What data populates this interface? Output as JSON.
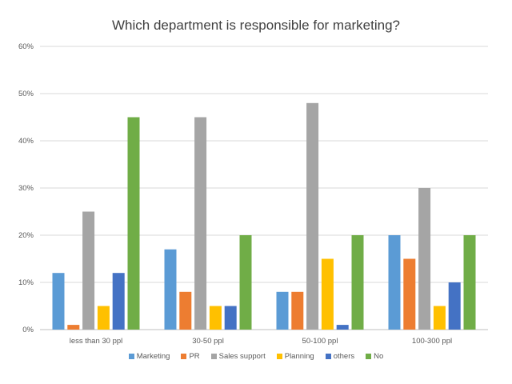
{
  "chart_data": {
    "type": "bar",
    "title": "Which department is responsible for marketing?",
    "categories": [
      "less than 30 ppl",
      "30-50 ppl",
      "50-100 ppl",
      "100-300 ppl"
    ],
    "series": [
      {
        "name": "Marketing",
        "color": "#5B9BD5",
        "values": [
          12,
          17,
          8,
          20
        ]
      },
      {
        "name": "PR",
        "color": "#ED7D31",
        "values": [
          1,
          8,
          8,
          15
        ]
      },
      {
        "name": "Sales support",
        "color": "#A5A5A5",
        "values": [
          25,
          45,
          48,
          30
        ]
      },
      {
        "name": "Planning",
        "color": "#FFC000",
        "values": [
          5,
          5,
          15,
          5
        ]
      },
      {
        "name": "others",
        "color": "#4472C4",
        "values": [
          12,
          5,
          1,
          10
        ]
      },
      {
        "name": "No",
        "color": "#70AD47",
        "values": [
          45,
          20,
          20,
          20
        ]
      }
    ],
    "yticks": [
      "0%",
      "10%",
      "20%",
      "30%",
      "40%",
      "50%",
      "60%"
    ],
    "ylim": [
      0,
      60
    ],
    "grid": true,
    "legend": "bottom"
  }
}
